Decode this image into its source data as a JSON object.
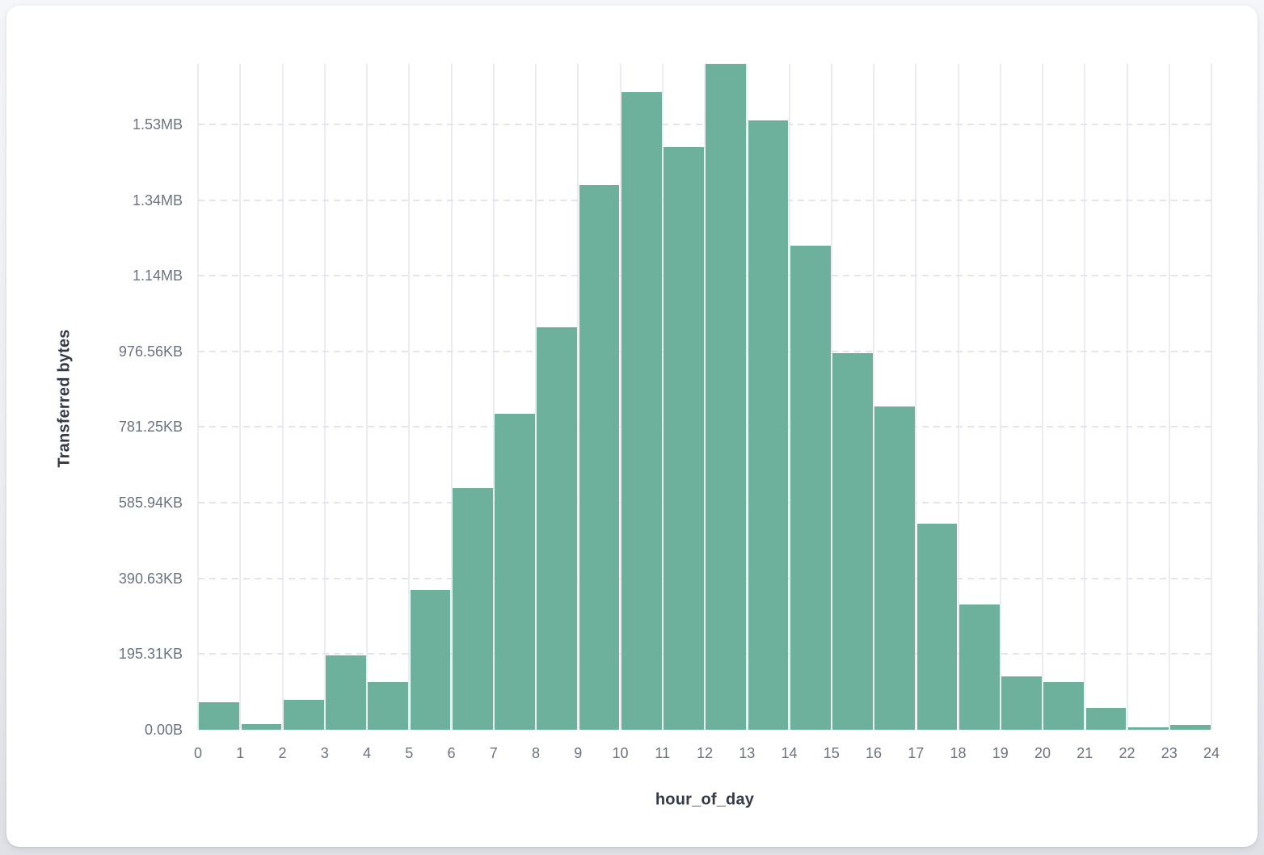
{
  "chart_data": {
    "type": "bar",
    "title": "",
    "xlabel": "hour_of_day",
    "ylabel": "Transferred bytes",
    "legend": "none",
    "grid": {
      "vertical": "solid",
      "horizontal": "dashed"
    },
    "bar_color": "#6db09b",
    "xlim": [
      0,
      24
    ],
    "ylim": [
      0,
      1760000
    ],
    "bin_edges": [
      0,
      1,
      2,
      3,
      4,
      5,
      6,
      7,
      8,
      9,
      10,
      11,
      12,
      13,
      14,
      15,
      16,
      17,
      18,
      19,
      20,
      21,
      22,
      23,
      24
    ],
    "values_bytes": [
      72000,
      16000,
      78000,
      196000,
      126000,
      369000,
      639000,
      836000,
      1064000,
      1439000,
      1685000,
      1540000,
      1760000,
      1611000,
      1279000,
      996000,
      854000,
      545000,
      332000,
      141000,
      125000,
      57000,
      6000,
      13000
    ],
    "y_ticks": [
      {
        "value": 0,
        "label": "0.00B"
      },
      {
        "value": 200000,
        "label": "195.31KB"
      },
      {
        "value": 400000,
        "label": "390.63KB"
      },
      {
        "value": 600000,
        "label": "585.94KB"
      },
      {
        "value": 800000,
        "label": "781.25KB"
      },
      {
        "value": 1000000,
        "label": "976.56KB"
      },
      {
        "value": 1200000,
        "label": "1.14MB"
      },
      {
        "value": 1400000,
        "label": "1.34MB"
      },
      {
        "value": 1600000,
        "label": "1.53MB"
      }
    ]
  },
  "colors": {
    "bar": "#6db09b",
    "card_background": "#ffffff",
    "page_background": "#eceef2",
    "grid_vertical": "#eaecf1",
    "grid_dashed": "#e2e5eb",
    "tick_label": "#6b7280",
    "axis_title": "#333a46"
  }
}
